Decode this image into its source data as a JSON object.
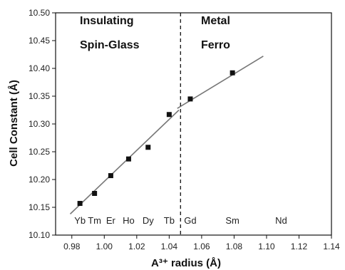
{
  "chart_data": {
    "type": "scatter",
    "xlabel": "A³⁺ radius (Å)",
    "ylabel": "Cell Constant (Å)",
    "xlim": [
      0.97,
      1.14
    ],
    "ylim": [
      10.1,
      10.5
    ],
    "x_ticks": [
      "0.98",
      "1.00",
      "1.02",
      "1.04",
      "1.06",
      "1.08",
      "1.10",
      "1.12",
      "1.14"
    ],
    "y_ticks": [
      "10.10",
      "10.15",
      "10.20",
      "10.25",
      "10.30",
      "10.35",
      "10.40",
      "10.45",
      "10.50"
    ],
    "grid": false,
    "points": [
      {
        "x": 0.985,
        "y": 10.157
      },
      {
        "x": 0.994,
        "y": 10.175
      },
      {
        "x": 1.004,
        "y": 10.207
      },
      {
        "x": 1.015,
        "y": 10.237
      },
      {
        "x": 1.027,
        "y": 10.258
      },
      {
        "x": 1.04,
        "y": 10.317
      },
      {
        "x": 1.053,
        "y": 10.345
      },
      {
        "x": 1.079,
        "y": 10.392
      }
    ],
    "fit_lines": [
      {
        "x": [
          0.979,
          1.046
        ],
        "y": [
          10.138,
          10.325
        ]
      },
      {
        "x": [
          1.045,
          1.098
        ],
        "y": [
          10.328,
          10.422
        ]
      }
    ],
    "divider_x": 1.047,
    "region_labels": {
      "left": [
        "Insulating",
        "Spin-Glass"
      ],
      "right": [
        "Metal",
        "Ferro"
      ]
    },
    "element_labels": [
      {
        "text": "Yb",
        "x": 0.985
      },
      {
        "text": "Tm",
        "x": 0.994
      },
      {
        "text": "Er",
        "x": 1.004
      },
      {
        "text": "Ho",
        "x": 1.015
      },
      {
        "text": "Dy",
        "x": 1.027
      },
      {
        "text": "Tb",
        "x": 1.04
      },
      {
        "text": "Gd",
        "x": 1.053
      },
      {
        "text": "Sm",
        "x": 1.079
      },
      {
        "text": "Nd",
        "x": 1.109
      }
    ]
  }
}
